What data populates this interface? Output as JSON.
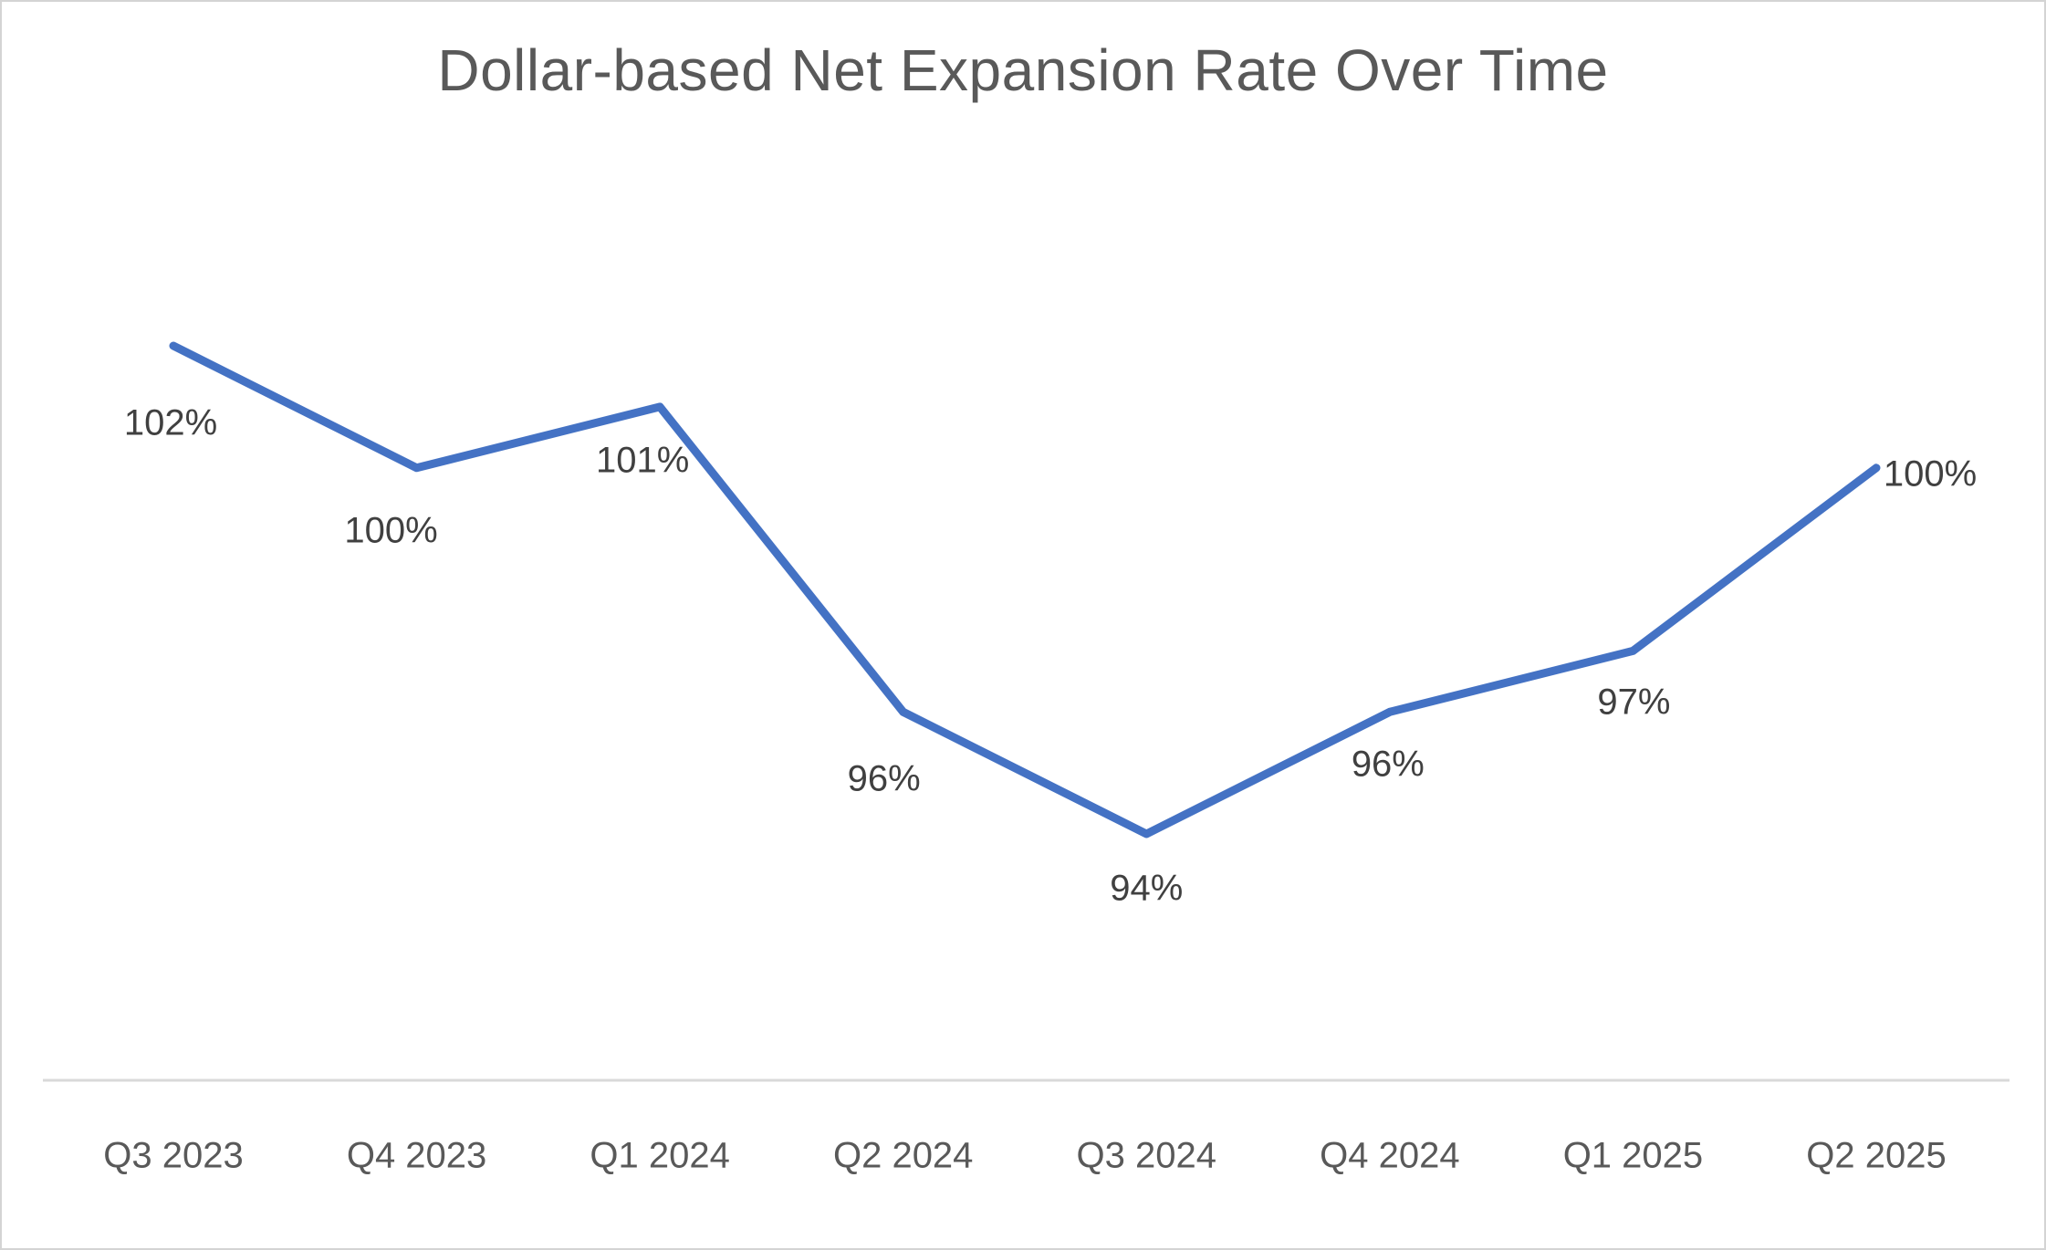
{
  "chart_data": {
    "type": "line",
    "title": "Dollar-based Net Expansion Rate Over Time",
    "categories": [
      "Q3 2023",
      "Q4 2023",
      "Q1 2024",
      "Q2 2024",
      "Q3 2024",
      "Q4 2024",
      "Q1 2025",
      "Q2 2025"
    ],
    "values": [
      102,
      100,
      101,
      96,
      94,
      96,
      97,
      100
    ],
    "data_labels": [
      "102%",
      "100%",
      "101%",
      "96%",
      "94%",
      "96%",
      "97%",
      "100%"
    ],
    "unit": "%",
    "xlabel": "",
    "ylabel": "",
    "ylim_implied": [
      90,
      104
    ],
    "legend_position": "none",
    "grid": false,
    "y_axis_visible": false,
    "x_axis_line_visible": true,
    "label_positions": [
      "below",
      "below",
      "below",
      "below",
      "below",
      "below",
      "below",
      "right"
    ]
  },
  "colors": {
    "line": "#4472C4",
    "title": "#595959",
    "data_label": "#404040",
    "axis_label": "#595959",
    "axis_line": "#D9D9D9",
    "background": "#FFFFFF",
    "border": "#D4D4D4"
  }
}
